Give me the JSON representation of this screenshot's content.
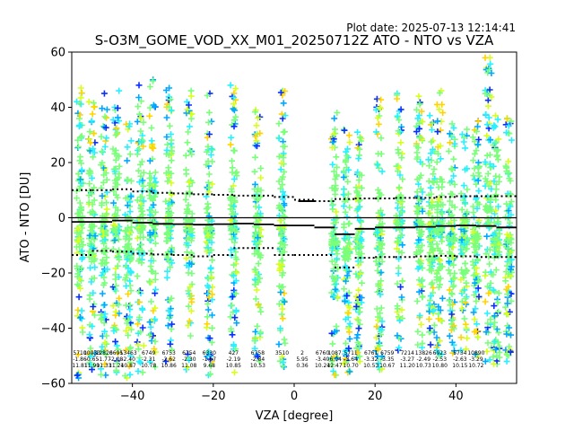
{
  "plot_date": "Plot date: 2025-07-13 12:14:41",
  "chart_data": {
    "type": "scatter",
    "title": "S-O3M_GOME_VOD_XX_M01_20250712Z ATO - NTO vs VZA",
    "xlabel": "VZA [degree]",
    "ylabel": "ATO - NTO [DU]",
    "xlim": [
      -55,
      55
    ],
    "ylim": [
      -60,
      60
    ],
    "xticks": [
      -40,
      -20,
      0,
      20,
      40
    ],
    "yticks": [
      -60,
      -40,
      -20,
      0,
      20,
      40,
      60
    ],
    "grid": false,
    "marker": "+",
    "colormap": [
      "#0a2fff",
      "#00a8ff",
      "#27f0ff",
      "#7bff7b",
      "#d7ff1e",
      "#ffd400"
    ],
    "columns_x": [
      -53,
      -50,
      -47,
      -44,
      -41,
      -38,
      -35,
      -31,
      -26,
      -21,
      -15,
      -9,
      -3,
      10,
      13,
      16,
      21,
      26,
      31,
      34,
      36,
      39,
      42,
      45,
      48,
      50,
      53
    ],
    "columns_ymin": [
      -58,
      -55,
      -57,
      -56,
      -58,
      -56,
      -54,
      -52,
      -55,
      -57,
      -56,
      -52,
      -54,
      -57,
      -56,
      -52,
      -55,
      -48,
      -47,
      -46,
      -50,
      -49,
      -48,
      -50,
      -52,
      -53,
      -52
    ],
    "columns_ymax": [
      47,
      42,
      45,
      46,
      34,
      48,
      50,
      47,
      46,
      45,
      48,
      39,
      46,
      38,
      32,
      31,
      43,
      45,
      44,
      37,
      46,
      34,
      32,
      35,
      58,
      37,
      36
    ],
    "mean_line": {
      "x": [
        -55,
        -50,
        -45,
        -40,
        -35,
        -30,
        -25,
        -20,
        -15,
        -10,
        -5,
        -1,
        5,
        10,
        15,
        20,
        25,
        30,
        35,
        40,
        45,
        50,
        55
      ],
      "y": [
        -1.5,
        -1.5,
        -1.0,
        -1.8,
        -2.2,
        -2.3,
        -2.5,
        -2.3,
        -2.1,
        -2.4,
        -2.8,
        -2.8,
        -3.5,
        -6.0,
        -4.0,
        -3.5,
        -3.5,
        -3.3,
        -3.0,
        -2.8,
        -3.0,
        -3.5,
        -3.5
      ]
    },
    "upper_sigma": {
      "x": [
        -55,
        -50,
        -45,
        -40,
        -35,
        -30,
        -25,
        -20,
        -15,
        -10,
        -5,
        0,
        5,
        10,
        15,
        20,
        25,
        30,
        35,
        40,
        45,
        50,
        55
      ],
      "y": [
        10.0,
        10.0,
        10.3,
        9.5,
        9.0,
        8.8,
        8.5,
        8.3,
        8.0,
        8.0,
        7.5,
        6.5,
        6.0,
        6.8,
        7.0,
        7.0,
        7.2,
        7.2,
        7.5,
        7.8,
        7.8,
        7.8,
        7.8
      ]
    },
    "lower_sigma": {
      "x": [
        -55,
        -50,
        -45,
        -40,
        -35,
        -30,
        -25,
        -20,
        -15,
        -10,
        -5,
        0,
        10,
        15,
        20,
        25,
        30,
        35,
        40,
        45,
        50,
        55
      ],
      "y": [
        -13.5,
        -12.0,
        -12.3,
        -13.0,
        -13.3,
        -13.5,
        -14.0,
        -13.5,
        -11.0,
        -11.0,
        -13.5,
        -13.5,
        -18.0,
        -14.5,
        -14.2,
        -14.2,
        -14.0,
        -13.8,
        -14.0,
        -14.2,
        -14.2,
        -14.5
      ]
    },
    "short_segment": {
      "x": [
        1,
        5
      ],
      "y": [
        6.0,
        6.0
      ]
    },
    "stat_labels": [
      {
        "x": -53,
        "lines": [
          "5710",
          "-1.86",
          "11.81"
        ]
      },
      {
        "x": -50,
        "lines": [
          "10033",
          "-0.65",
          "11.99"
        ]
      },
      {
        "x": -47,
        "lines": [
          "12820",
          "-1.77",
          "11.33"
        ]
      },
      {
        "x": -44,
        "lines": [
          "6695",
          "-2.08",
          "11.24"
        ]
      },
      {
        "x": -41,
        "lines": [
          "13463",
          "-2.40",
          "10.87"
        ]
      },
      {
        "x": -36,
        "lines": [
          "6749",
          "-2.31",
          "10.78"
        ]
      },
      {
        "x": -31,
        "lines": [
          "6753",
          "-2.62",
          "10.86"
        ]
      },
      {
        "x": -26,
        "lines": [
          "6754",
          "-2.30",
          "11.08"
        ]
      },
      {
        "x": -21,
        "lines": [
          "6330",
          "-1.67",
          "9.68"
        ]
      },
      {
        "x": -15,
        "lines": [
          "427",
          "-2.19",
          "10.85"
        ]
      },
      {
        "x": -9,
        "lines": [
          "6758",
          "-2.84",
          "10.53"
        ]
      },
      {
        "x": -3,
        "lines": [
          "3510",
          "",
          ""
        ]
      },
      {
        "x": 2,
        "lines": [
          "2",
          "5.95",
          "0.36"
        ]
      },
      {
        "x": 7,
        "lines": [
          "6760",
          "-3.40",
          "10.24"
        ]
      },
      {
        "x": 10,
        "lines": [
          "1087",
          "-6.04",
          "12.47"
        ]
      },
      {
        "x": 14,
        "lines": [
          "5711",
          "-3.64",
          "10.70"
        ]
      },
      {
        "x": 19,
        "lines": [
          "6761",
          "-3.32",
          "10.53"
        ]
      },
      {
        "x": 23,
        "lines": [
          "6759",
          "-3.35",
          "10.67"
        ]
      },
      {
        "x": 28,
        "lines": [
          "7214",
          "-3.27",
          "11.20"
        ]
      },
      {
        "x": 32,
        "lines": [
          "13826",
          "-2.49",
          "10.73"
        ]
      },
      {
        "x": 36,
        "lines": [
          "6923",
          "-2.53",
          "10.80"
        ]
      },
      {
        "x": 41,
        "lines": [
          "5734",
          "-2.63",
          "10.15"
        ]
      },
      {
        "x": 45,
        "lines": [
          "10890",
          "-3.29",
          "10.72"
        ]
      }
    ]
  }
}
